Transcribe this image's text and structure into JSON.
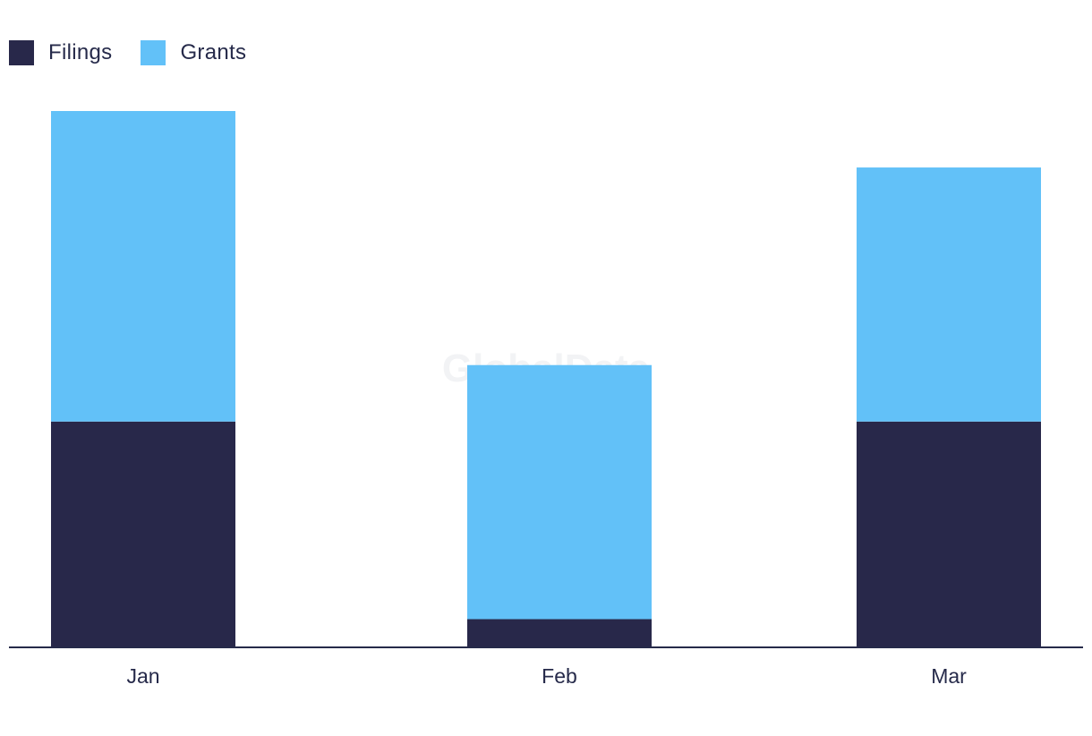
{
  "watermark": "GlobalData",
  "colors": {
    "Filings": "#28284a",
    "Grants": "#62c1f8",
    "axis": "#262a4a"
  },
  "chart_data": {
    "type": "bar",
    "stacked": true,
    "categories": [
      "Jan",
      "Feb",
      "Mar"
    ],
    "series": [
      {
        "name": "Filings",
        "values": [
          8,
          1,
          8
        ]
      },
      {
        "name": "Grants",
        "values": [
          11,
          9,
          9
        ]
      }
    ],
    "ylim": [
      0,
      19
    ],
    "title": "",
    "xlabel": "",
    "ylabel": "",
    "grid": false,
    "legend_position": "top-left"
  }
}
